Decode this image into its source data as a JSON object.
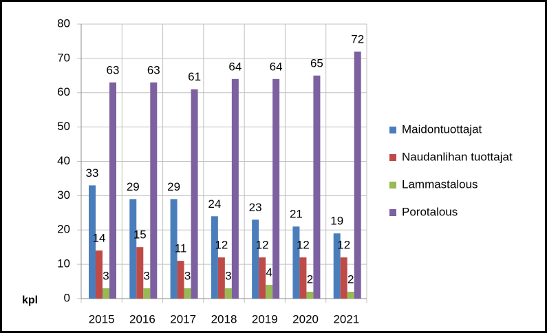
{
  "chart_data": {
    "type": "bar",
    "ylabel": "kpl",
    "categories": [
      "2015",
      "2016",
      "2017",
      "2018",
      "2019",
      "2020",
      "2021"
    ],
    "series": [
      {
        "name": "Maidontuottajat",
        "color": "#4a7ebb",
        "values": [
          33,
          29,
          29,
          24,
          23,
          21,
          19
        ]
      },
      {
        "name": "Naudanlihan tuottajat",
        "color": "#be4b48",
        "values": [
          14,
          15,
          11,
          12,
          12,
          12,
          12
        ]
      },
      {
        "name": "Lammastalous",
        "color": "#98b954",
        "values": [
          3,
          3,
          3,
          3,
          4,
          2,
          2
        ]
      },
      {
        "name": "Porotalous",
        "color": "#7d60a0",
        "values": [
          63,
          63,
          61,
          64,
          64,
          65,
          72
        ]
      }
    ],
    "ylim": [
      0,
      80
    ],
    "yticks": [
      0,
      10,
      20,
      30,
      40,
      50,
      60,
      70,
      80
    ],
    "grid": true,
    "legend": "right"
  }
}
